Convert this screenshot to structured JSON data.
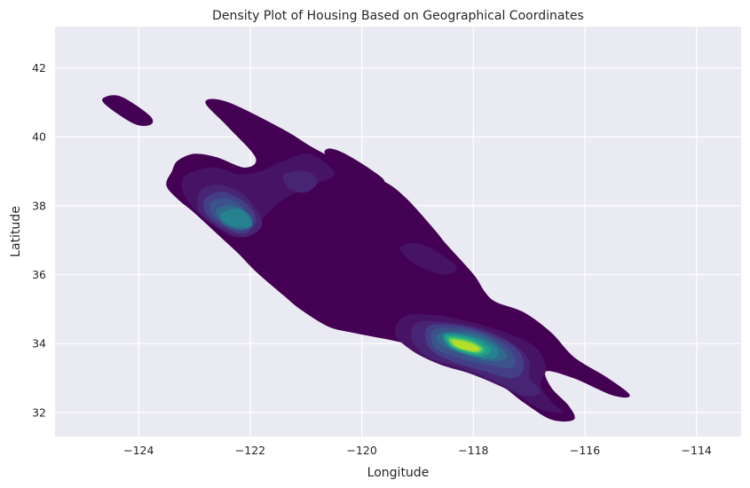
{
  "chart_data": {
    "type": "kde-contour",
    "title": "Density Plot of Housing Based on Geographical Coordinates",
    "xlabel": "Longitude",
    "ylabel": "Latitude",
    "xlim": [
      -125.5,
      -113.2
    ],
    "ylim": [
      31.3,
      43.2
    ],
    "x_ticks": [
      -124,
      -122,
      -120,
      -118,
      -116,
      -114
    ],
    "y_ticks": [
      32,
      34,
      36,
      38,
      40,
      42
    ],
    "x_tick_labels": [
      "−124",
      "−122",
      "−120",
      "−118",
      "−116",
      "−114"
    ],
    "y_tick_labels": [
      "32",
      "34",
      "36",
      "38",
      "40",
      "42"
    ],
    "grid": true,
    "colormap": "viridis",
    "level_colors": [
      "#440154",
      "#471365",
      "#482475",
      "#433e85",
      "#3b528b",
      "#31688e",
      "#26828e",
      "#1f9e89",
      "#35b779",
      "#6ece58",
      "#b5de2b"
    ],
    "background_color": "#eaeaf2",
    "contours": [
      {
        "level": 1,
        "color": "#440154",
        "points": [
          [
            -124.6,
            41.15
          ],
          [
            -124.3,
            41.15
          ],
          [
            -123.8,
            40.6
          ],
          [
            -123.8,
            40.35
          ],
          [
            -124.1,
            40.4
          ],
          [
            -124.6,
            40.95
          ]
        ]
      },
      {
        "level": 1,
        "color": "#440154",
        "points": [
          [
            -120.6,
            39.65
          ],
          [
            -120.3,
            39.5
          ],
          [
            -119.8,
            39.0
          ],
          [
            -119.6,
            38.7
          ],
          [
            -119.9,
            38.7
          ],
          [
            -120.6,
            39.4
          ]
        ]
      },
      {
        "level": 1,
        "color": "#440154",
        "points": [
          [
            -123.3,
            39.3
          ],
          [
            -123.0,
            39.5
          ],
          [
            -122.6,
            39.4
          ],
          [
            -122.1,
            39.1
          ],
          [
            -121.9,
            39.4
          ],
          [
            -122.4,
            40.3
          ],
          [
            -122.8,
            41.0
          ],
          [
            -122.4,
            41.0
          ],
          [
            -121.4,
            40.2
          ],
          [
            -120.9,
            39.7
          ],
          [
            -120.3,
            39.2
          ],
          [
            -119.6,
            38.7
          ],
          [
            -119.2,
            38.2
          ],
          [
            -118.7,
            37.3
          ],
          [
            -118.5,
            36.9
          ],
          [
            -118.0,
            36.0
          ],
          [
            -117.8,
            35.5
          ],
          [
            -117.6,
            35.2
          ],
          [
            -117.1,
            34.9
          ],
          [
            -116.6,
            34.3
          ],
          [
            -116.2,
            33.6
          ],
          [
            -115.6,
            33.0
          ],
          [
            -115.2,
            32.5
          ],
          [
            -115.5,
            32.5
          ],
          [
            -116.2,
            33.0
          ],
          [
            -116.7,
            33.2
          ],
          [
            -116.6,
            32.7
          ],
          [
            -116.3,
            32.2
          ],
          [
            -116.2,
            31.8
          ],
          [
            -116.6,
            31.8
          ],
          [
            -117.1,
            32.3
          ],
          [
            -117.6,
            32.9
          ],
          [
            -118.4,
            33.5
          ],
          [
            -119.2,
            34.0
          ],
          [
            -120.1,
            34.3
          ],
          [
            -120.6,
            34.5
          ],
          [
            -121.1,
            35.0
          ],
          [
            -121.4,
            35.4
          ],
          [
            -121.9,
            36.1
          ],
          [
            -122.2,
            36.6
          ],
          [
            -122.6,
            37.2
          ],
          [
            -123.0,
            37.8
          ],
          [
            -123.3,
            38.2
          ],
          [
            -123.5,
            38.6
          ],
          [
            -123.4,
            39.0
          ]
        ]
      },
      {
        "level": 2,
        "color": "#471365",
        "points": [
          [
            -123.0,
            39.0
          ],
          [
            -122.6,
            39.1
          ],
          [
            -122.2,
            38.9
          ],
          [
            -121.8,
            39.0
          ],
          [
            -121.4,
            39.3
          ],
          [
            -121.0,
            39.5
          ],
          [
            -120.7,
            39.3
          ],
          [
            -120.5,
            38.9
          ],
          [
            -120.9,
            38.6
          ],
          [
            -121.4,
            38.2
          ],
          [
            -121.8,
            37.6
          ],
          [
            -122.0,
            37.2
          ],
          [
            -122.3,
            37.1
          ],
          [
            -122.7,
            37.5
          ],
          [
            -123.0,
            37.9
          ],
          [
            -123.2,
            38.4
          ],
          [
            -123.2,
            38.8
          ]
        ]
      },
      {
        "level": 2,
        "color": "#471365",
        "points": [
          [
            -119.3,
            36.8
          ],
          [
            -119.0,
            36.9
          ],
          [
            -118.6,
            36.6
          ],
          [
            -118.3,
            36.2
          ],
          [
            -118.5,
            36.0
          ],
          [
            -118.9,
            36.2
          ],
          [
            -119.2,
            36.5
          ]
        ]
      },
      {
        "level": 2,
        "color": "#471365",
        "points": [
          [
            -119.2,
            34.8
          ],
          [
            -118.6,
            34.8
          ],
          [
            -118.0,
            34.6
          ],
          [
            -117.4,
            34.3
          ],
          [
            -116.9,
            33.9
          ],
          [
            -116.7,
            33.3
          ],
          [
            -116.8,
            32.8
          ],
          [
            -116.6,
            32.3
          ],
          [
            -116.4,
            32.0
          ],
          [
            -116.8,
            32.1
          ],
          [
            -117.3,
            32.6
          ],
          [
            -118.0,
            33.1
          ],
          [
            -118.6,
            33.4
          ],
          [
            -119.1,
            33.8
          ],
          [
            -119.4,
            34.3
          ]
        ]
      },
      {
        "level": 3,
        "color": "#482475",
        "points": [
          [
            -122.9,
            38.4
          ],
          [
            -122.6,
            38.6
          ],
          [
            -122.2,
            38.4
          ],
          [
            -121.9,
            37.9
          ],
          [
            -121.8,
            37.4
          ],
          [
            -122.1,
            37.1
          ],
          [
            -122.5,
            37.3
          ],
          [
            -122.9,
            37.8
          ]
        ]
      },
      {
        "level": 3,
        "color": "#482475",
        "points": [
          [
            -121.4,
            38.9
          ],
          [
            -121.0,
            39.0
          ],
          [
            -120.8,
            38.7
          ],
          [
            -121.0,
            38.4
          ],
          [
            -121.3,
            38.5
          ]
        ]
      },
      {
        "level": 3,
        "color": "#482475",
        "points": [
          [
            -119.0,
            34.6
          ],
          [
            -118.4,
            34.6
          ],
          [
            -117.8,
            34.4
          ],
          [
            -117.3,
            34.0
          ],
          [
            -117.0,
            33.5
          ],
          [
            -117.0,
            33.0
          ],
          [
            -116.8,
            32.6
          ],
          [
            -117.1,
            32.5
          ],
          [
            -117.6,
            32.9
          ],
          [
            -118.2,
            33.3
          ],
          [
            -118.8,
            33.6
          ],
          [
            -119.1,
            34.1
          ]
        ]
      },
      {
        "level": 4,
        "color": "#433e85",
        "points": [
          [
            -122.8,
            38.2
          ],
          [
            -122.5,
            38.4
          ],
          [
            -122.1,
            38.1
          ],
          [
            -121.9,
            37.6
          ],
          [
            -122.1,
            37.2
          ],
          [
            -122.5,
            37.4
          ],
          [
            -122.8,
            37.8
          ]
        ]
      },
      {
        "level": 4,
        "color": "#433e85",
        "points": [
          [
            -118.8,
            34.5
          ],
          [
            -118.2,
            34.5
          ],
          [
            -117.6,
            34.2
          ],
          [
            -117.2,
            33.8
          ],
          [
            -117.1,
            33.3
          ],
          [
            -117.3,
            33.0
          ],
          [
            -117.8,
            33.2
          ],
          [
            -118.4,
            33.5
          ],
          [
            -118.8,
            33.9
          ]
        ]
      },
      {
        "level": 5,
        "color": "#3b528b",
        "points": [
          [
            -122.7,
            38.1
          ],
          [
            -122.4,
            38.2
          ],
          [
            -122.1,
            37.9
          ],
          [
            -122.0,
            37.5
          ],
          [
            -122.2,
            37.3
          ],
          [
            -122.5,
            37.5
          ],
          [
            -122.7,
            37.8
          ]
        ]
      },
      {
        "level": 5,
        "color": "#3b528b",
        "points": [
          [
            -118.7,
            34.4
          ],
          [
            -118.1,
            34.4
          ],
          [
            -117.6,
            34.1
          ],
          [
            -117.3,
            33.7
          ],
          [
            -117.3,
            33.3
          ],
          [
            -117.8,
            33.4
          ],
          [
            -118.3,
            33.6
          ],
          [
            -118.7,
            33.9
          ]
        ]
      },
      {
        "level": 6,
        "color": "#31688e",
        "points": [
          [
            -122.6,
            37.9
          ],
          [
            -122.3,
            38.0
          ],
          [
            -122.0,
            37.7
          ],
          [
            -122.0,
            37.4
          ],
          [
            -122.2,
            37.3
          ],
          [
            -122.5,
            37.5
          ]
        ]
      },
      {
        "level": 6,
        "color": "#31688e",
        "points": [
          [
            -118.6,
            34.3
          ],
          [
            -118.0,
            34.3
          ],
          [
            -117.6,
            34.0
          ],
          [
            -117.4,
            33.6
          ],
          [
            -117.7,
            33.5
          ],
          [
            -118.2,
            33.7
          ],
          [
            -118.6,
            34.0
          ]
        ]
      },
      {
        "level": 7,
        "color": "#26828e",
        "points": [
          [
            -122.5,
            37.8
          ],
          [
            -122.2,
            37.9
          ],
          [
            -122.0,
            37.6
          ],
          [
            -122.0,
            37.4
          ],
          [
            -122.3,
            37.4
          ],
          [
            -122.5,
            37.6
          ]
        ]
      },
      {
        "level": 7,
        "color": "#26828e",
        "points": [
          [
            -118.5,
            34.3
          ],
          [
            -118.0,
            34.2
          ],
          [
            -117.6,
            33.9
          ],
          [
            -117.6,
            33.6
          ],
          [
            -117.9,
            33.6
          ],
          [
            -118.3,
            33.8
          ],
          [
            -118.5,
            34.0
          ]
        ]
      },
      {
        "level": 8,
        "color": "#1f9e89",
        "points": [
          [
            -118.5,
            34.25
          ],
          [
            -118.0,
            34.15
          ],
          [
            -117.7,
            33.85
          ],
          [
            -117.8,
            33.65
          ],
          [
            -118.1,
            33.7
          ],
          [
            -118.4,
            33.9
          ]
        ]
      },
      {
        "level": 9,
        "color": "#35b779",
        "points": [
          [
            -118.45,
            34.2
          ],
          [
            -118.05,
            34.1
          ],
          [
            -117.8,
            33.85
          ],
          [
            -117.9,
            33.7
          ],
          [
            -118.2,
            33.8
          ],
          [
            -118.4,
            33.95
          ]
        ]
      },
      {
        "level": 10,
        "color": "#6ece58",
        "points": [
          [
            -118.4,
            34.15
          ],
          [
            -118.05,
            34.05
          ],
          [
            -117.85,
            33.85
          ],
          [
            -117.95,
            33.75
          ],
          [
            -118.25,
            33.85
          ],
          [
            -118.4,
            34.0
          ]
        ]
      },
      {
        "level": 11,
        "color": "#b5de2b",
        "points": [
          [
            -118.35,
            34.1
          ],
          [
            -118.05,
            34.0
          ],
          [
            -117.9,
            33.85
          ],
          [
            -118.0,
            33.78
          ],
          [
            -118.25,
            33.88
          ],
          [
            -118.35,
            34.0
          ]
        ]
      }
    ]
  }
}
